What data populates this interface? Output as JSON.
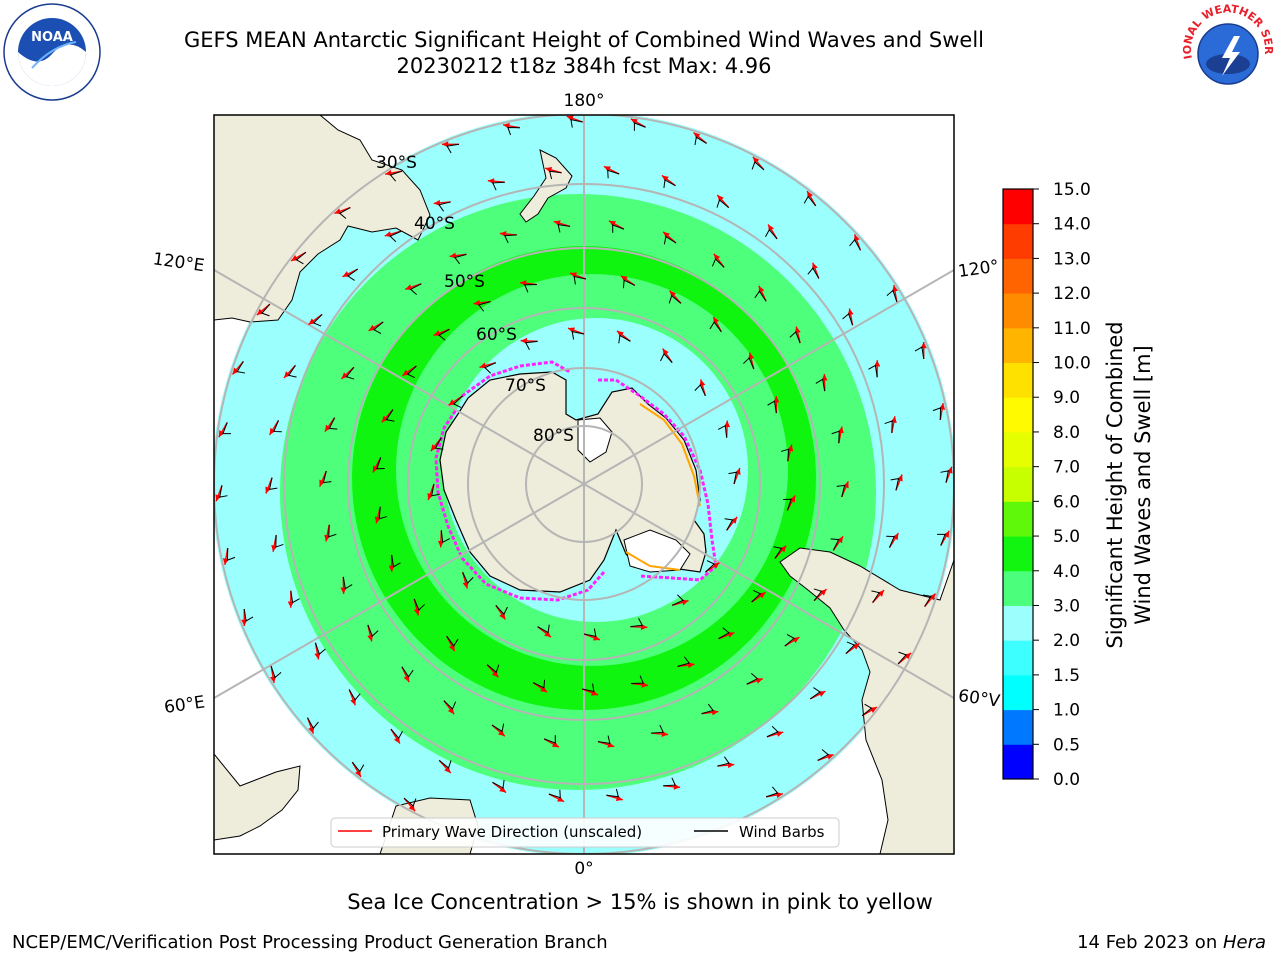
{
  "title": {
    "line1": "GEFS MEAN Antarctic Significant Height of Combined Wind Waves and Swell",
    "line2": "20230212 t18z 384h fcst   Max: 4.96"
  },
  "map": {
    "projection": "south-polar-stereographic",
    "longitude_labels": {
      "top": "180°",
      "bottom": "0°",
      "upper_left": "120°E",
      "lower_left": "60°E",
      "upper_right": "120°",
      "lower_right": "60°V"
    },
    "latitude_labels": [
      "30°S",
      "40°S",
      "50°S",
      "60°S",
      "70°S",
      "80°S"
    ],
    "colors": {
      "land": "#eeeddb",
      "ocean_low": "#9afffd",
      "ocean_mid": "#4dff7a",
      "ocean_high": "#10f510",
      "grid": "#b5b5b5",
      "wave_arrow": "#ff0000",
      "wind_barb": "#000000",
      "sea_ice_edge": "#ff22ff"
    }
  },
  "legend": {
    "primary_wave": "Primary Wave Direction (unscaled)",
    "wind_barbs": "Wind Barbs"
  },
  "colorbar": {
    "label_line1": "Significant Height of Combined",
    "label_line2": "Wind Waves and Swell [m]",
    "ticks": [
      "0.0",
      "0.5",
      "1.0",
      "1.5",
      "2.0",
      "3.0",
      "4.0",
      "5.0",
      "6.0",
      "7.0",
      "8.0",
      "9.0",
      "10.0",
      "11.0",
      "12.0",
      "13.0",
      "14.0",
      "15.0"
    ],
    "colors": [
      "#0000ff",
      "#0078ff",
      "#00ffff",
      "#3dffff",
      "#9cfffe",
      "#4bff7d",
      "#11f511",
      "#5ff70a",
      "#c7ff00",
      "#e6ff00",
      "#fffa00",
      "#ffe100",
      "#ffb400",
      "#ff8c00",
      "#ff6400",
      "#ff3c00",
      "#ff0000"
    ]
  },
  "notes": {
    "sea_ice": "Sea Ice Concentration > 15% is shown in pink to yellow"
  },
  "footer": {
    "left": "NCEP/EMC/Verification Post Processing Product Generation Branch",
    "right_date": "14 Feb 2023 on ",
    "right_machine": "Hera"
  },
  "logos": {
    "left": "noaa-logo",
    "right": "national-weather-service-logo",
    "noaa_text": "NOAA",
    "nws_text": "NATIONAL WEATHER SERVICE"
  }
}
